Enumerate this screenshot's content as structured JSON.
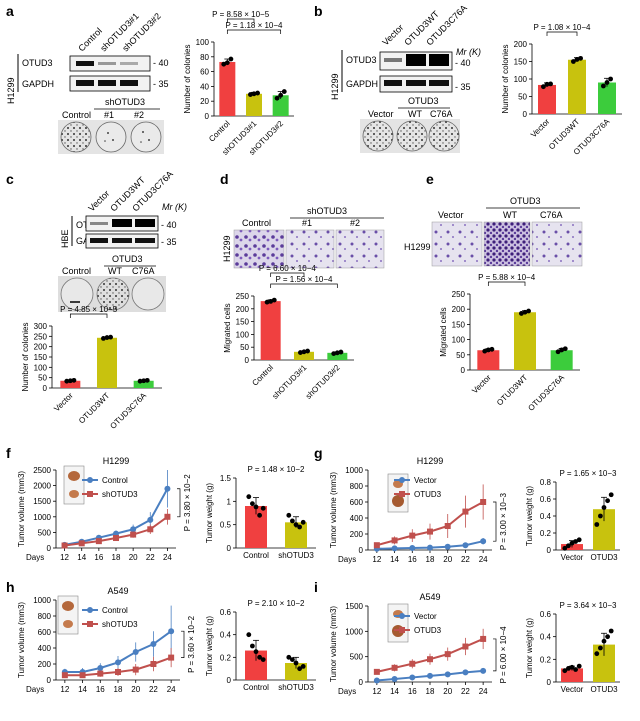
{
  "figure": {
    "panel_letters": [
      "a",
      "b",
      "c",
      "d",
      "e",
      "f",
      "g",
      "h",
      "i"
    ],
    "common": {
      "H1299": "H1299",
      "HBE": "HBE",
      "A549": "A549",
      "OTUD3": "OTUD3",
      "GAPDH": "GAPDH",
      "mw40": "- 40",
      "mw35": "- 35",
      "mr": "Mr (K)",
      "shOTUD3": "shOTUD3",
      "WT": "WT",
      "C76A": "C76A",
      "n1": "#1",
      "n2": "#2",
      "Control": "Control",
      "Vector": "Vector",
      "Days": "Days"
    },
    "a": {
      "blot_lanes": [
        "Control",
        "shOTUD3#1",
        "shOTUD3#2"
      ],
      "colony_header": "shOTUD3",
      "colony_lanes": [
        "Control",
        "#1",
        "#2"
      ]
    },
    "b": {
      "blot_lanes": [
        "Vector",
        "OTUD3WT",
        "OTUD3C76A"
      ],
      "colony_header": "OTUD3",
      "colony_lanes": [
        "Vector",
        "WT",
        "C76A"
      ]
    },
    "c": {
      "blot_lanes": [
        "Vector",
        "OTUD3WT",
        "OTUD3C76A"
      ],
      "colony_header": "OTUD3",
      "colony_lanes": [
        "Control",
        "WT",
        "C76A"
      ]
    },
    "d": {
      "image_header": "shOTUD3",
      "image_lanes": [
        "Control",
        "#1",
        "#2"
      ]
    },
    "e": {
      "image_header": "OTUD3",
      "image_lanes": [
        "Vector",
        "WT",
        "C76A"
      ]
    }
  },
  "chart_data": [
    {
      "id": "a_bar",
      "type": "bar",
      "title": "",
      "xlabel": "",
      "ylabel": "Number of colonies",
      "categories": [
        "Control",
        "shOTUD3#1",
        "shOTUD3#2"
      ],
      "values": [
        73,
        30,
        28
      ],
      "errors": [
        4,
        2,
        5
      ],
      "dots": [
        [
          70,
          72,
          77
        ],
        [
          29,
          30,
          31
        ],
        [
          24,
          28,
          33
        ]
      ],
      "ylim": [
        0,
        100
      ],
      "yticks": [
        0,
        20,
        40,
        60,
        80,
        100
      ],
      "colors": [
        "#f04040",
        "#c8c20e",
        "#3ccc3c"
      ],
      "pvalues": [
        {
          "text": "P = 1.18 × 10−4",
          "from": 0,
          "to": 2
        },
        {
          "text": "P = 8.58 × 10−5",
          "from": 0,
          "to": 1
        }
      ]
    },
    {
      "id": "b_bar",
      "type": "bar",
      "title": "",
      "xlabel": "",
      "ylabel": "Number of colonies",
      "categories": [
        "Vector",
        "OTUD3WT",
        "OTUD3C76A"
      ],
      "values": [
        83,
        155,
        90
      ],
      "errors": [
        6,
        6,
        12
      ],
      "dots": [
        [
          78,
          85,
          86
        ],
        [
          150,
          156,
          159
        ],
        [
          80,
          90,
          100
        ]
      ],
      "ylim": [
        0,
        200
      ],
      "yticks": [
        0,
        50,
        100,
        150,
        200
      ],
      "colors": [
        "#f04040",
        "#c8c20e",
        "#3ccc3c"
      ],
      "pvalues": [
        {
          "text": "P = 1.08 × 10−4",
          "from": 0,
          "to": 1
        }
      ]
    },
    {
      "id": "c_bar",
      "type": "bar",
      "title": "",
      "xlabel": "",
      "ylabel": "Number of colonies",
      "categories": [
        "Vector",
        "OTUD3WT",
        "OTUD3C76A"
      ],
      "values": [
        35,
        243,
        35
      ],
      "errors": [
        3,
        4,
        3
      ],
      "dots": [
        [
          33,
          35,
          37
        ],
        [
          240,
          244,
          246
        ],
        [
          33,
          35,
          37
        ]
      ],
      "ylim": [
        0,
        300
      ],
      "yticks": [
        0,
        50,
        100,
        150,
        200,
        250,
        300
      ],
      "colors": [
        "#f04040",
        "#c8c20e",
        "#3ccc3c"
      ],
      "pvalues": [
        {
          "text": "P = 4.85 × 10−5",
          "from": 0,
          "to": 1
        }
      ]
    },
    {
      "id": "d_bar",
      "type": "bar",
      "title": "",
      "xlabel": "",
      "ylabel": "Migrated cells",
      "categories": [
        "Control",
        "shOTUD3#1",
        "shOTUD3#2"
      ],
      "values": [
        230,
        32,
        28
      ],
      "errors": [
        5,
        3,
        3
      ],
      "dots": [
        [
          226,
          229,
          234
        ],
        [
          29,
          32,
          35
        ],
        [
          25,
          28,
          31
        ]
      ],
      "ylim": [
        0,
        250
      ],
      "yticks": [
        0,
        50,
        100,
        150,
        200,
        250
      ],
      "colors": [
        "#f04040",
        "#c8c20e",
        "#3ccc3c"
      ],
      "pvalues": [
        {
          "text": "P = 1.56 × 10−4",
          "from": 0,
          "to": 2
        },
        {
          "text": "P = 6.60 × 10−4",
          "from": 0,
          "to": 1
        }
      ]
    },
    {
      "id": "e_bar",
      "type": "bar",
      "title": "",
      "xlabel": "",
      "ylabel": "Migrated cells",
      "categories": [
        "Vector",
        "OTUD3WT",
        "OTUD3C76A"
      ],
      "values": [
        65,
        190,
        65
      ],
      "errors": [
        5,
        5,
        6
      ],
      "dots": [
        [
          62,
          66,
          68
        ],
        [
          186,
          190,
          194
        ],
        [
          60,
          66,
          70
        ]
      ],
      "ylim": [
        0,
        250
      ],
      "yticks": [
        0,
        50,
        100,
        150,
        200,
        250
      ],
      "colors": [
        "#f04040",
        "#c8c20e",
        "#3ccc3c"
      ],
      "pvalues": [
        {
          "text": "P = 5.88 × 10−4",
          "from": 0,
          "to": 1
        }
      ]
    },
    {
      "id": "f_line",
      "type": "line",
      "title": "H1299",
      "xlabel": "Days",
      "ylabel": "Tumor volume (mm3)",
      "x": [
        12,
        14,
        16,
        18,
        20,
        22,
        24
      ],
      "xlim": [
        11,
        25
      ],
      "ylim": [
        0,
        2500
      ],
      "yticks": [
        0,
        500,
        1000,
        1500,
        2000,
        2500
      ],
      "series": [
        {
          "name": "Control",
          "color": "#4a7fc1",
          "marker": "circle",
          "values": [
            100,
            200,
            330,
            460,
            600,
            900,
            1900
          ],
          "errors": [
            40,
            50,
            70,
            100,
            150,
            250,
            600
          ]
        },
        {
          "name": "shOTUD3",
          "color": "#c0504d",
          "marker": "square",
          "values": [
            80,
            150,
            220,
            320,
            430,
            600,
            1000
          ],
          "errors": [
            30,
            40,
            50,
            70,
            100,
            150,
            250
          ]
        }
      ],
      "pvalue": "P = 3.80 × 10−2",
      "legend": "top-left"
    },
    {
      "id": "f_bar",
      "type": "bar",
      "title": "",
      "xlabel": "",
      "ylabel": "Tumor weight (g)",
      "categories": [
        "Control",
        "shOTUD3"
      ],
      "values": [
        0.9,
        0.55
      ],
      "errors": [
        0.18,
        0.12
      ],
      "dots": [
        [
          1.1,
          0.95,
          0.88,
          0.7,
          0.85
        ],
        [
          0.7,
          0.58,
          0.5,
          0.45,
          0.55
        ]
      ],
      "ylim": [
        0,
        1.5
      ],
      "yticks": [
        0,
        0.5,
        1,
        1.5
      ],
      "colors": [
        "#f04040",
        "#c8c20e"
      ],
      "pvalues": [
        {
          "text": "P = 1.48 × 10−2"
        }
      ]
    },
    {
      "id": "g_line",
      "type": "line",
      "title": "H1299",
      "xlabel": "Days",
      "ylabel": "Tumor volume (mm3)",
      "x": [
        12,
        14,
        16,
        18,
        20,
        22,
        24
      ],
      "xlim": [
        11,
        25
      ],
      "ylim": [
        0,
        1000
      ],
      "yticks": [
        0,
        200,
        400,
        600,
        800,
        1000
      ],
      "series": [
        {
          "name": "Vector",
          "color": "#4a7fc1",
          "marker": "circle",
          "values": [
            15,
            20,
            25,
            30,
            40,
            60,
            110
          ],
          "errors": [
            5,
            5,
            8,
            10,
            15,
            25,
            40
          ]
        },
        {
          "name": "OTUD3",
          "color": "#c0504d",
          "marker": "square",
          "values": [
            60,
            120,
            180,
            230,
            300,
            480,
            600
          ],
          "errors": [
            30,
            50,
            80,
            100,
            150,
            200,
            220
          ]
        }
      ],
      "pvalue": "P = 3.00 × 10−3",
      "legend": "top-left"
    },
    {
      "id": "g_bar",
      "type": "bar",
      "title": "",
      "xlabel": "",
      "ylabel": "Tumor weight (g)",
      "categories": [
        "Vector",
        "OTUD3"
      ],
      "values": [
        0.07,
        0.48
      ],
      "errors": [
        0.04,
        0.14
      ],
      "dots": [
        [
          0.02,
          0.05,
          0.08,
          0.1,
          0.12
        ],
        [
          0.3,
          0.4,
          0.5,
          0.58,
          0.65
        ]
      ],
      "ylim": [
        0,
        0.8
      ],
      "yticks": [
        0,
        0.2,
        0.4,
        0.6,
        0.8
      ],
      "colors": [
        "#f04040",
        "#c8c20e"
      ],
      "pvalues": [
        {
          "text": "P = 1.65 × 10−3"
        }
      ]
    },
    {
      "id": "h_line",
      "type": "line",
      "title": "A549",
      "xlabel": "Days",
      "ylabel": "Tumor volume (mm3)",
      "x": [
        12,
        14,
        16,
        18,
        20,
        22,
        24
      ],
      "xlim": [
        11,
        25
      ],
      "ylim": [
        0,
        1000
      ],
      "yticks": [
        0,
        200,
        400,
        600,
        800,
        1000
      ],
      "series": [
        {
          "name": "Control",
          "color": "#4a7fc1",
          "marker": "circle",
          "values": [
            100,
            100,
            150,
            220,
            350,
            450,
            610
          ],
          "errors": [
            40,
            50,
            60,
            80,
            120,
            160,
            320
          ]
        },
        {
          "name": "shOTUD3",
          "color": "#c0504d",
          "marker": "square",
          "values": [
            60,
            60,
            80,
            100,
            130,
            200,
            280
          ],
          "errors": [
            30,
            30,
            40,
            50,
            70,
            90,
            120
          ]
        }
      ],
      "pvalue": "P = 3.60 × 10−2",
      "legend": "top-left"
    },
    {
      "id": "h_bar",
      "type": "bar",
      "title": "",
      "xlabel": "",
      "ylabel": "Tumor weight (g)",
      "categories": [
        "Control",
        "shOTUD3"
      ],
      "values": [
        0.26,
        0.15
      ],
      "errors": [
        0.09,
        0.05
      ],
      "dots": [
        [
          0.4,
          0.3,
          0.25,
          0.2,
          0.18
        ],
        [
          0.2,
          0.18,
          0.15,
          0.1,
          0.12
        ]
      ],
      "ylim": [
        0,
        0.6
      ],
      "yticks": [
        0,
        0.2,
        0.4,
        0.6
      ],
      "colors": [
        "#f04040",
        "#c8c20e"
      ],
      "pvalues": [
        {
          "text": "P = 2.10 × 10−2"
        }
      ]
    },
    {
      "id": "i_line",
      "type": "line",
      "title": "A549",
      "xlabel": "Days",
      "ylabel": "Tumor volume (mm3)",
      "x": [
        12,
        14,
        16,
        18,
        20,
        22,
        24
      ],
      "xlim": [
        11,
        25
      ],
      "ylim": [
        0,
        1500
      ],
      "yticks": [
        0,
        500,
        1000,
        1500
      ],
      "series": [
        {
          "name": "Vector",
          "color": "#4a7fc1",
          "marker": "circle",
          "values": [
            30,
            60,
            90,
            120,
            150,
            190,
            220
          ],
          "errors": [
            10,
            20,
            25,
            30,
            35,
            40,
            50
          ]
        },
        {
          "name": "OTUD3",
          "color": "#c0504d",
          "marker": "square",
          "values": [
            200,
            280,
            360,
            450,
            550,
            700,
            850
          ],
          "errors": [
            50,
            70,
            90,
            110,
            130,
            170,
            200
          ]
        }
      ],
      "pvalue": "P = 6.00 × 10−4",
      "legend": "top-left"
    },
    {
      "id": "i_bar",
      "type": "bar",
      "title": "",
      "xlabel": "",
      "ylabel": "Tumor weight (g)",
      "categories": [
        "Vector",
        "OTUD3"
      ],
      "values": [
        0.12,
        0.33
      ],
      "errors": [
        0.02,
        0.1
      ],
      "dots": [
        [
          0.1,
          0.12,
          0.13,
          0.11,
          0.14
        ],
        [
          0.25,
          0.3,
          0.36,
          0.4,
          0.45
        ]
      ],
      "ylim": [
        0,
        0.6
      ],
      "yticks": [
        0,
        0.2,
        0.4,
        0.6
      ],
      "colors": [
        "#f04040",
        "#c8c20e"
      ],
      "pvalues": [
        {
          "text": "P = 3.64 × 10−3"
        }
      ]
    }
  ]
}
